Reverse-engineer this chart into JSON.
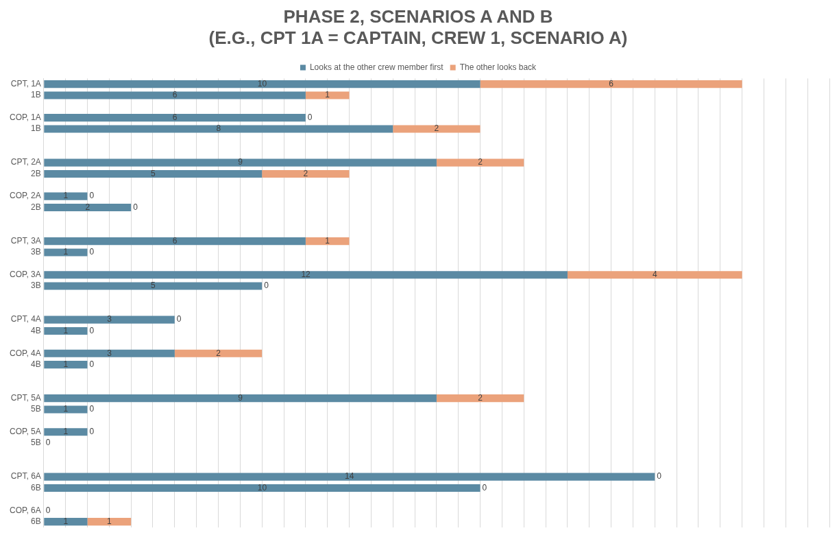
{
  "chart_data": {
    "type": "bar",
    "orientation": "horizontal",
    "stacked": true,
    "title": "PHASE 2, SCENARIOS A AND B\n(E.G., CPT 1A = CAPTAIN, CREW 1, SCENARIO A)",
    "categories": [
      "CPT, 1A",
      "1B",
      null,
      "COP, 1A",
      "1B",
      null,
      null,
      "CPT, 2A",
      "2B",
      null,
      "COP, 2A",
      "2B",
      null,
      null,
      "CPT, 3A",
      "3B",
      null,
      "COP, 3A",
      "3B",
      null,
      null,
      "CPT, 4A",
      "4B",
      null,
      "COP, 4A",
      "4B",
      null,
      null,
      "CPT, 5A",
      "5B",
      null,
      "COP, 5A",
      "5B",
      null,
      null,
      "CPT, 6A",
      "6B",
      null,
      "COP, 6A",
      "6B"
    ],
    "series": [
      {
        "name": "Looks at the other crew member first",
        "color": "#5b8aa3",
        "values": [
          10,
          6,
          null,
          6,
          8,
          null,
          null,
          9,
          5,
          null,
          1,
          2,
          null,
          null,
          6,
          1,
          null,
          12,
          5,
          null,
          null,
          3,
          1,
          null,
          3,
          1,
          null,
          null,
          9,
          1,
          null,
          1,
          0,
          null,
          null,
          14,
          10,
          null,
          0,
          1
        ]
      },
      {
        "name": "The other looks back",
        "color": "#eba27b",
        "values": [
          6,
          1,
          null,
          0,
          2,
          null,
          null,
          2,
          2,
          null,
          0,
          0,
          null,
          null,
          1,
          0,
          null,
          4,
          0,
          null,
          null,
          0,
          0,
          null,
          2,
          0,
          null,
          null,
          2,
          0,
          null,
          0,
          null,
          null,
          null,
          0,
          0,
          null,
          null,
          1
        ]
      }
    ],
    "xlim": [
      0,
      18
    ],
    "xticks": [
      {
        "value": 0,
        "label": null
      },
      {
        "value": 0.5,
        "label": null
      },
      {
        "value": 1,
        "label": null
      },
      {
        "value": 1.5,
        "label": null
      },
      {
        "value": 2,
        "label": null
      },
      {
        "value": 2.5,
        "label": null
      },
      {
        "value": 3,
        "label": null
      },
      {
        "value": 3.5,
        "label": null
      },
      {
        "value": 4,
        "label": null
      },
      {
        "value": 4.5,
        "label": null
      },
      {
        "value": 5,
        "label": null
      },
      {
        "value": 5.5,
        "label": null
      },
      {
        "value": 6,
        "label": null
      },
      {
        "value": 6.5,
        "label": null
      },
      {
        "value": 7,
        "label": null
      },
      {
        "value": 7.5,
        "label": null
      },
      {
        "value": 8,
        "label": null
      },
      {
        "value": 8.5,
        "label": null
      },
      {
        "value": 9,
        "label": null
      },
      {
        "value": 9.5,
        "label": null
      },
      {
        "value": 10,
        "label": null
      },
      {
        "value": 10.5,
        "label": null
      },
      {
        "value": 11,
        "label": null
      },
      {
        "value": 11.5,
        "label": null
      },
      {
        "value": 12,
        "label": null
      },
      {
        "value": 12.5,
        "label": null
      },
      {
        "value": 13,
        "label": null
      },
      {
        "value": 13.5,
        "label": null
      },
      {
        "value": 14,
        "label": null
      },
      {
        "value": 14.5,
        "label": null
      },
      {
        "value": 15,
        "label": null
      },
      {
        "value": 15.5,
        "label": null
      },
      {
        "value": 16,
        "label": null
      },
      {
        "value": 16.5,
        "label": null
      },
      {
        "value": 17,
        "label": null
      },
      {
        "value": 17.5,
        "label": null
      },
      {
        "value": 18,
        "label": null
      }
    ],
    "tick_labels": "y",
    "grid": "x",
    "legend": "top",
    "data_labels": true
  }
}
